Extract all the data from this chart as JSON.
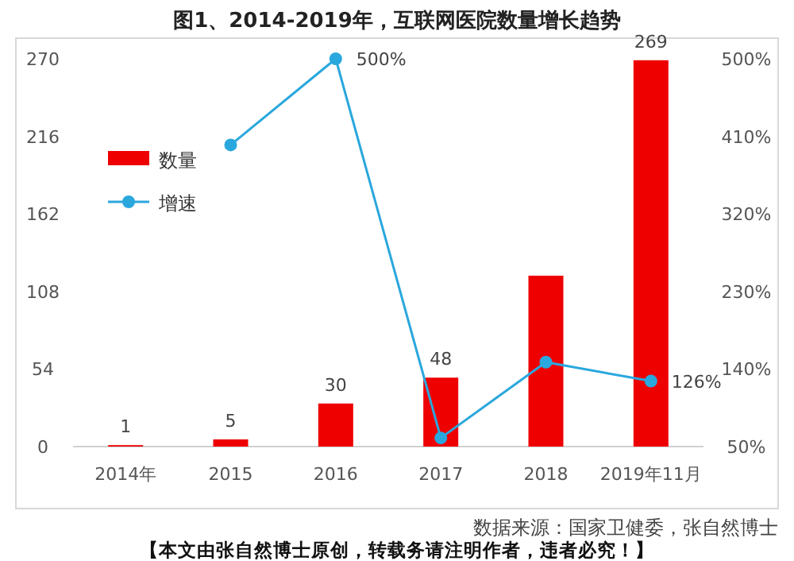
{
  "chart_data": {
    "type": "bar",
    "title": "图1、2014-2019年，互联网医院数量增长趋势",
    "categories": [
      "2014年",
      "2015",
      "2016",
      "2017",
      "2018",
      "2019年11月"
    ],
    "series": [
      {
        "name": "数量",
        "color": "#ee0000",
        "values": [
          1,
          5,
          30,
          48,
          119,
          269
        ],
        "value_labels": [
          "1",
          "5",
          "30",
          "48",
          null,
          "269"
        ]
      },
      {
        "name": "增速",
        "type": "line",
        "axis": "y2",
        "color": "#2aa7dd",
        "marker": "circle",
        "values": [
          null,
          400,
          500,
          60,
          148,
          126
        ],
        "value_labels": [
          null,
          null,
          "500%",
          null,
          null,
          "126%"
        ]
      }
    ],
    "ylim": [
      0,
      270
    ],
    "yticks": [
      0,
      54,
      108,
      162,
      216,
      270
    ],
    "y2lim": [
      50,
      500
    ],
    "y2ticks": [
      {
        "value": 50,
        "label": "50%"
      },
      {
        "value": 140,
        "label": "140%"
      },
      {
        "value": 230,
        "label": "230%"
      },
      {
        "value": 320,
        "label": "320%"
      },
      {
        "value": 410,
        "label": "410%"
      },
      {
        "value": 500,
        "label": "500%"
      }
    ],
    "legend": "top left",
    "grid": false,
    "annotations": [
      "数据来源：国家卫健委，张自然博士",
      "【本文由张自然博士原创，转载务请注明作者，违者必究！】"
    ]
  }
}
